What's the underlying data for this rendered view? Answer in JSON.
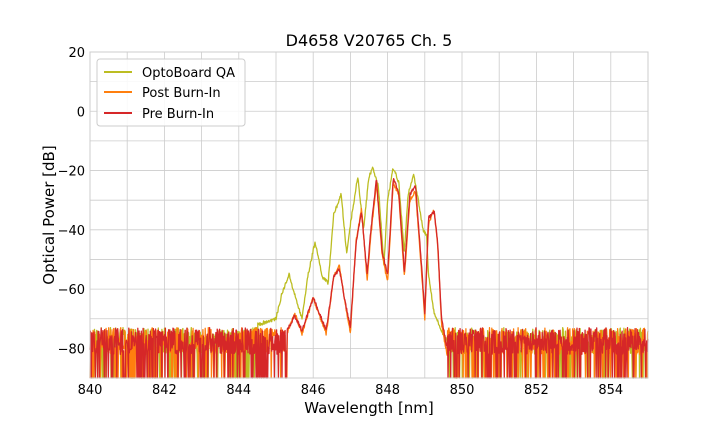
{
  "chart_data": {
    "type": "line",
    "title": "D4658 V20765 Ch. 5",
    "xlabel": "Wavelength [nm]",
    "ylabel": "Optical Power [dB]",
    "xlim": [
      840,
      855
    ],
    "ylim": [
      -90,
      20
    ],
    "xticks": [
      840,
      842,
      844,
      846,
      848,
      850,
      852,
      854
    ],
    "yticks": [
      20,
      0,
      -20,
      -40,
      -60,
      -80
    ],
    "xtick_labels": [
      "840",
      "842",
      "844",
      "846",
      "848",
      "850",
      "852",
      "854"
    ],
    "ytick_labels": [
      "20",
      "0",
      "−20",
      "−40",
      "−60",
      "−80"
    ],
    "grid": true,
    "minor_grid": true,
    "legend_position": "top-left",
    "noise_floor": -80,
    "series": [
      {
        "name": "OptoBoard QA",
        "color": "#bcbd22",
        "points": [
          [
            840,
            -83
          ],
          [
            844.5,
            -72
          ],
          [
            845,
            -70
          ],
          [
            845.15,
            -62
          ],
          [
            845.35,
            -55
          ],
          [
            845.55,
            -64
          ],
          [
            845.7,
            -70
          ],
          [
            845.85,
            -56
          ],
          [
            846.05,
            -44
          ],
          [
            846.25,
            -56
          ],
          [
            846.4,
            -58
          ],
          [
            846.55,
            -35
          ],
          [
            846.75,
            -28
          ],
          [
            846.9,
            -48
          ],
          [
            847.0,
            -38
          ],
          [
            847.2,
            -22
          ],
          [
            847.35,
            -40
          ],
          [
            847.5,
            -22
          ],
          [
            847.6,
            -19
          ],
          [
            847.75,
            -25
          ],
          [
            847.9,
            -52
          ],
          [
            848.0,
            -30
          ],
          [
            848.15,
            -19
          ],
          [
            848.3,
            -24
          ],
          [
            848.45,
            -48
          ],
          [
            848.55,
            -28
          ],
          [
            848.7,
            -21
          ],
          [
            848.85,
            -32
          ],
          [
            848.95,
            -40
          ],
          [
            849.05,
            -42
          ],
          [
            849.1,
            -55
          ],
          [
            849.25,
            -68
          ],
          [
            849.45,
            -74
          ],
          [
            849.7,
            -80
          ],
          [
            850.2,
            -82
          ],
          [
            855,
            -80
          ]
        ],
        "noise_ranges": [
          [
            840,
            844.5
          ],
          [
            849.6,
            855
          ]
        ]
      },
      {
        "name": "Post Burn-In",
        "color": "#ff7f0e",
        "points": [
          [
            840,
            -83
          ],
          [
            845.3,
            -75
          ],
          [
            845.5,
            -68
          ],
          [
            845.7,
            -75
          ],
          [
            846.0,
            -63
          ],
          [
            846.2,
            -70
          ],
          [
            846.35,
            -75
          ],
          [
            846.55,
            -56
          ],
          [
            846.7,
            -52
          ],
          [
            846.85,
            -64
          ],
          [
            847.0,
            -75
          ],
          [
            847.15,
            -44
          ],
          [
            847.3,
            -33
          ],
          [
            847.45,
            -57
          ],
          [
            847.55,
            -42
          ],
          [
            847.7,
            -24
          ],
          [
            847.85,
            -48
          ],
          [
            848.0,
            -58
          ],
          [
            848.15,
            -24
          ],
          [
            848.3,
            -28
          ],
          [
            848.45,
            -56
          ],
          [
            848.6,
            -30
          ],
          [
            848.75,
            -27
          ],
          [
            848.9,
            -52
          ],
          [
            849.0,
            -70
          ],
          [
            849.1,
            -38
          ],
          [
            849.25,
            -33
          ],
          [
            849.35,
            -46
          ],
          [
            849.45,
            -72
          ],
          [
            849.6,
            -82
          ],
          [
            850,
            -82
          ],
          [
            855,
            -80
          ]
        ],
        "noise_ranges": [
          [
            840,
            845.3
          ],
          [
            849.6,
            855
          ]
        ]
      },
      {
        "name": "Pre Burn-In",
        "color": "#d62728",
        "points": [
          [
            840,
            -80
          ],
          [
            845.3,
            -74
          ],
          [
            845.5,
            -69
          ],
          [
            845.7,
            -74
          ],
          [
            846.0,
            -63
          ],
          [
            846.2,
            -69
          ],
          [
            846.35,
            -74
          ],
          [
            846.55,
            -56
          ],
          [
            846.7,
            -53
          ],
          [
            846.85,
            -64
          ],
          [
            847.0,
            -73
          ],
          [
            847.15,
            -45
          ],
          [
            847.3,
            -34
          ],
          [
            847.45,
            -55
          ],
          [
            847.55,
            -40
          ],
          [
            847.7,
            -23
          ],
          [
            847.85,
            -47
          ],
          [
            848.0,
            -55
          ],
          [
            848.15,
            -23
          ],
          [
            848.3,
            -27
          ],
          [
            848.45,
            -54
          ],
          [
            848.6,
            -28
          ],
          [
            848.75,
            -25
          ],
          [
            848.9,
            -50
          ],
          [
            849.0,
            -68
          ],
          [
            849.1,
            -36
          ],
          [
            849.25,
            -34
          ],
          [
            849.35,
            -45
          ],
          [
            849.45,
            -70
          ],
          [
            849.6,
            -80
          ],
          [
            850,
            -78
          ],
          [
            855,
            -78
          ]
        ],
        "noise_ranges": [
          [
            840,
            845.3
          ],
          [
            849.6,
            855
          ]
        ]
      }
    ]
  }
}
